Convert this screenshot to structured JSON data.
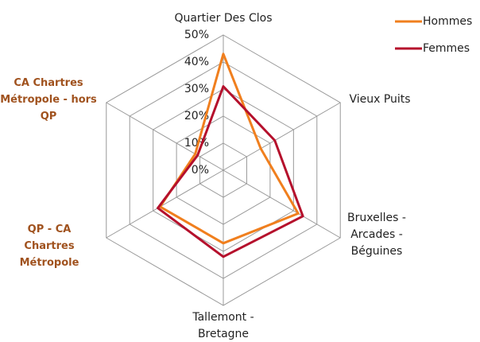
{
  "chart_data": {
    "type": "radar",
    "categories": [
      "Quartier Des Clos",
      "Vieux Puits",
      "Bruxelles - Arcades - Béguines",
      "Tallemont - Bretagne",
      "QP - CA Chartres Métropole",
      "CA Chartres Métropole - hors QP"
    ],
    "series": [
      {
        "name": "Hommes",
        "color": "#f07f1e",
        "values": [
          43,
          16,
          32,
          27,
          27,
          12
        ]
      },
      {
        "name": "Femmes",
        "color": "#b5102c",
        "values": [
          31,
          22,
          34,
          32,
          28,
          11
        ]
      }
    ],
    "rlim": [
      0,
      50
    ],
    "rticks": [
      {
        "value": 0,
        "label": "0%"
      },
      {
        "value": 10,
        "label": "10%"
      },
      {
        "value": 20,
        "label": "20%"
      },
      {
        "value": 30,
        "label": "30%"
      },
      {
        "value": 40,
        "label": "40%"
      },
      {
        "value": 50,
        "label": "50%"
      }
    ],
    "legend": "top-right"
  }
}
